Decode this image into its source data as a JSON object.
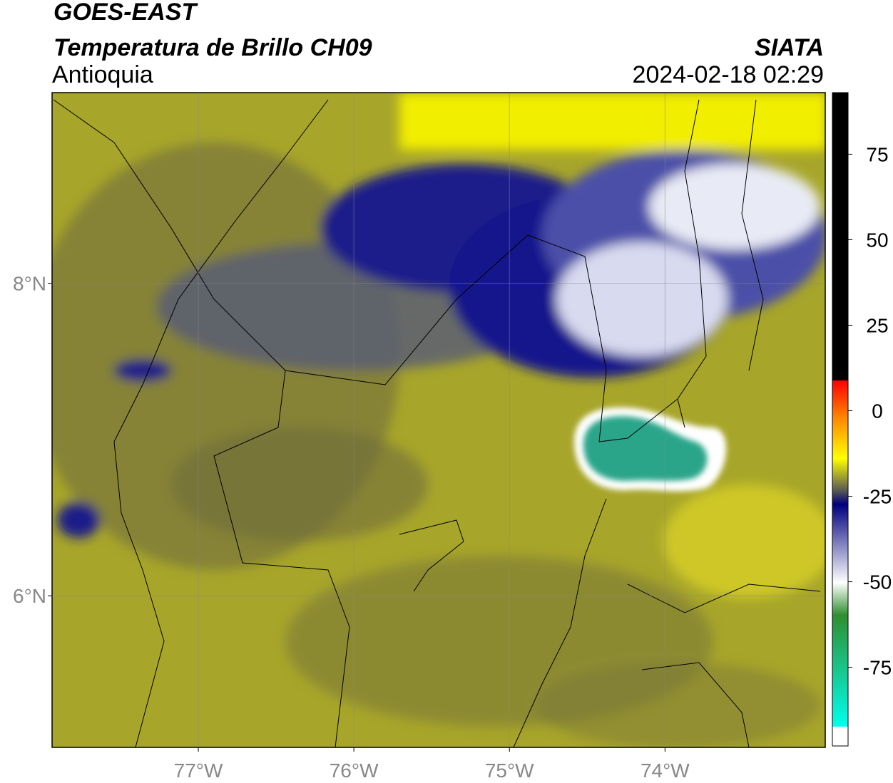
{
  "header": {
    "line1": "GOES-EAST",
    "line2": "Temperatura de Brillo CH09",
    "region": "Antioquia",
    "source": "SIATA",
    "datetime": "2024-02-18 02:29"
  },
  "map": {
    "xlim": [
      -77.94,
      -72.97
    ],
    "ylim": [
      5.03,
      9.22
    ],
    "xticks": [
      {
        "value": -77,
        "label": "77°W"
      },
      {
        "value": -76,
        "label": "76°W"
      },
      {
        "value": -75,
        "label": "75°W"
      },
      {
        "value": -74,
        "label": "74°W"
      }
    ],
    "yticks": [
      {
        "value": 8,
        "label": "8°N"
      },
      {
        "value": 6,
        "label": "6°N"
      }
    ],
    "grid": true
  },
  "colorbar": {
    "lim": [
      -98,
      93
    ],
    "ticks": [
      75,
      50,
      25,
      0,
      -25,
      -50,
      -75
    ]
  }
}
